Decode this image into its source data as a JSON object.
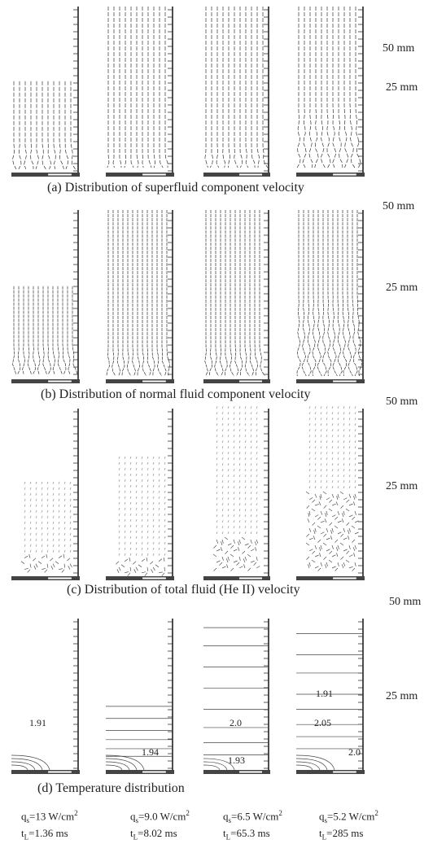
{
  "figure": {
    "panels": [
      {
        "id": "a",
        "caption": "(a) Distribution of superfluid component velocity",
        "scale_top": "50 mm",
        "scale_mid": "25 mm",
        "style": "vector"
      },
      {
        "id": "b",
        "caption": "(b) Distribution of normal fluid component velocity",
        "scale_top": "50 mm",
        "scale_mid": "25 mm",
        "style": "vector"
      },
      {
        "id": "c",
        "caption": "(c) Distribution of total fluid (He II) velocity",
        "scale_top": "50 mm",
        "scale_mid": "25 mm",
        "style": "vector"
      },
      {
        "id": "d",
        "caption": "(d) Temperature distribution",
        "scale_top": "50 mm",
        "scale_mid": "25 mm",
        "style": "contour",
        "labels": [
          [
            "1.91",
            "1.94"
          ],
          [
            "1.94"
          ],
          [
            "2.0",
            "1.93"
          ],
          [
            "1.91",
            "2.05",
            "2.0"
          ]
        ]
      }
    ],
    "conditions": [
      {
        "q_label": "q",
        "q_sub": "s",
        "q_value": "=13 W/cm",
        "q_sup": "2",
        "t_label": "t",
        "t_sub": "L",
        "t_value": "=1.36 ms"
      },
      {
        "q_label": "q",
        "q_sub": "s",
        "q_value": "=9.0 W/cm",
        "q_sup": "2",
        "t_label": "t",
        "t_sub": "L",
        "t_value": "=8.02 ms"
      },
      {
        "q_label": "q",
        "q_sub": "s",
        "q_value": "=6.5 W/cm",
        "q_sup": "2",
        "t_label": "t",
        "t_sub": "L",
        "t_value": "=65.3 ms"
      },
      {
        "q_label": "q",
        "q_sub": "s",
        "q_value": "=5.2 W/cm",
        "q_sup": "2",
        "t_label": "t",
        "t_sub": "L",
        "t_value": "=285 ms"
      }
    ]
  }
}
